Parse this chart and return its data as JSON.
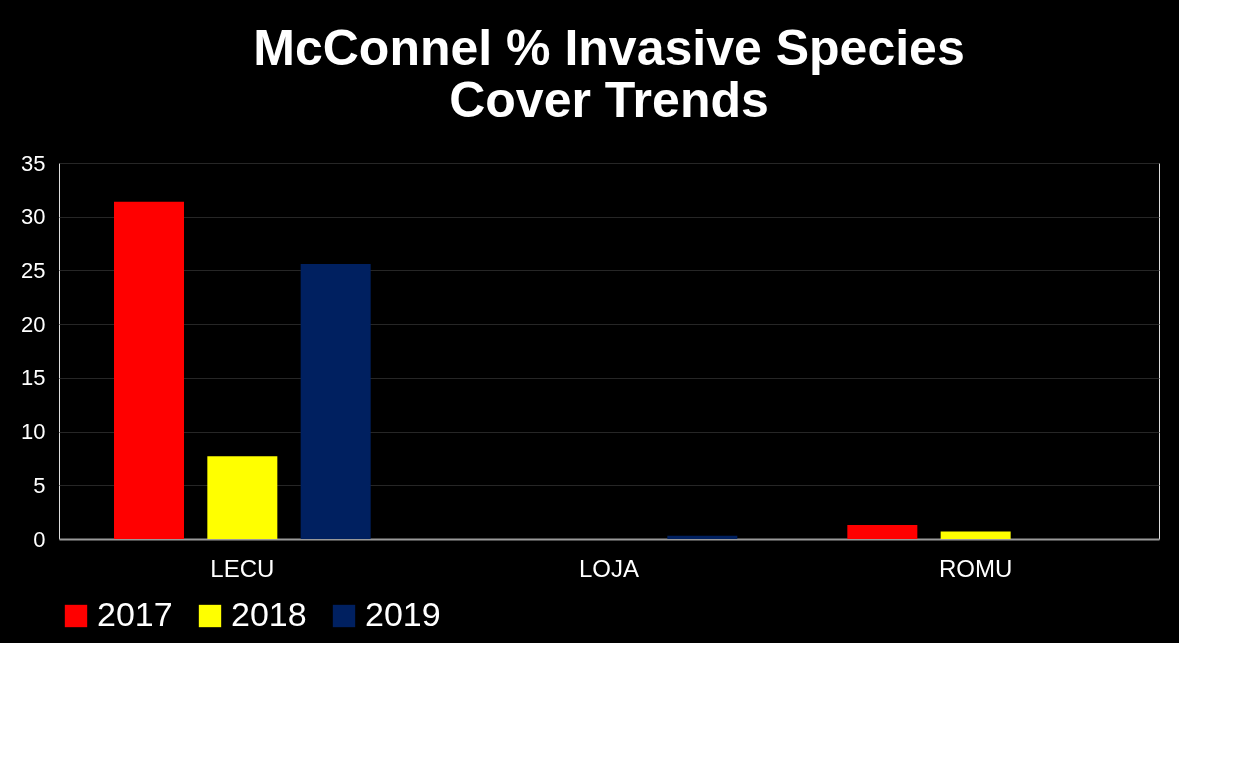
{
  "chart_data": {
    "type": "bar",
    "title": [
      "McConnel % Invasive Species",
      "Cover Trends"
    ],
    "categories": [
      "LECU",
      "LOJA",
      "ROMU"
    ],
    "series": [
      {
        "name": "2017",
        "color": "#ff0000",
        "values": [
          31.4,
          0,
          1.3
        ]
      },
      {
        "name": "2018",
        "color": "#ffff00",
        "values": [
          7.7,
          0,
          0.7
        ]
      },
      {
        "name": "2019",
        "color": "#002060",
        "values": [
          25.6,
          0.3,
          0
        ]
      }
    ],
    "ylim": [
      0,
      35
    ],
    "yticks": [
      0,
      5,
      10,
      15,
      20,
      25,
      30,
      35
    ],
    "grid": "y",
    "legend": "bottom"
  }
}
